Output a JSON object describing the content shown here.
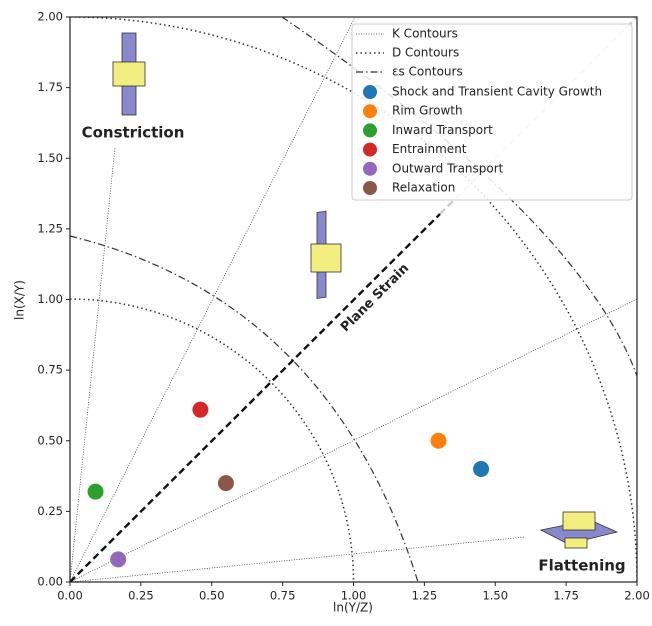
{
  "chart_data": {
    "type": "scatter",
    "xlabel": "ln(Y/Z)",
    "ylabel": "ln(X/Y)",
    "xlim": [
      0,
      2
    ],
    "ylim": [
      0,
      2
    ],
    "xticks": [
      {
        "value": 0,
        "label": "0.00"
      },
      {
        "value": 0.25,
        "label": "0.25"
      },
      {
        "value": 0.5,
        "label": "0.50"
      },
      {
        "value": 0.75,
        "label": "0.75"
      },
      {
        "value": 1,
        "label": "1.00"
      },
      {
        "value": 1.25,
        "label": "1.25"
      },
      {
        "value": 1.5,
        "label": "1.50"
      },
      {
        "value": 1.75,
        "label": "1.75"
      },
      {
        "value": 2,
        "label": "2.00"
      }
    ],
    "yticks": [
      {
        "value": 0,
        "label": "0.00"
      },
      {
        "value": 0.25,
        "label": "0.25"
      },
      {
        "value": 0.5,
        "label": "0.50"
      },
      {
        "value": 0.75,
        "label": "0.75"
      },
      {
        "value": 1,
        "label": "1.00"
      },
      {
        "value": 1.25,
        "label": "1.25"
      },
      {
        "value": 1.5,
        "label": "1.50"
      },
      {
        "value": 1.75,
        "label": "1.75"
      },
      {
        "value": 2,
        "label": "2.00"
      }
    ],
    "legend_lines": [
      "K Contours",
      "D Contours",
      "εs Contours"
    ],
    "series": [
      {
        "name": "Shock and Transient Cavity Growth",
        "color": "#1f77b4",
        "x": [
          1.45
        ],
        "values": [
          0.4
        ]
      },
      {
        "name": "Rim Growth",
        "color": "#ff7f0e",
        "x": [
          1.3
        ],
        "values": [
          0.5
        ]
      },
      {
        "name": "Inward Transport",
        "color": "#2ca02c",
        "x": [
          0.09
        ],
        "values": [
          0.32
        ]
      },
      {
        "name": "Entrainment",
        "color": "#d62728",
        "x": [
          0.46
        ],
        "values": [
          0.61
        ]
      },
      {
        "name": "Outward Transport",
        "color": "#9467bd",
        "x": [
          0.17
        ],
        "values": [
          0.08
        ]
      },
      {
        "name": "Relaxation",
        "color": "#8c564b",
        "x": [
          0.55
        ],
        "values": [
          0.35
        ]
      }
    ],
    "annotations": [
      "Constriction",
      "Plane Strain",
      "Flattening"
    ]
  }
}
